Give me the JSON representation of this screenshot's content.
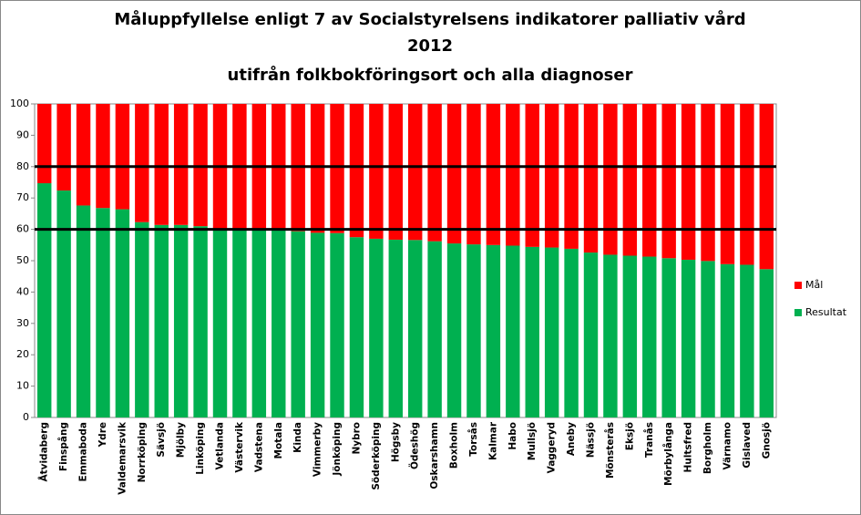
{
  "chart_data": {
    "type": "stacked_bar",
    "title": [
      "Måluppfyllelse enligt 7 av Socialstyrelsens indikatorer palliativ vård",
      "2012",
      "utifrån folkbokföringsort och alla diagnoser"
    ],
    "categories": [
      "Åtvidaberg",
      "Finspång",
      "Emmaboda",
      "Ydre",
      "Valdemarsvik",
      "Norrköping",
      "Sävsjö",
      "Mjölby",
      "Linköping",
      "Vetlanda",
      "Västervik",
      "Vadstena",
      "Motala",
      "Kinda",
      "Vimmerby",
      "Jönköping",
      "Nybro",
      "Söderköping",
      "Högsby",
      "Ödeshög",
      "Oskarshamn",
      "Boxholm",
      "Torsås",
      "Kalmar",
      "Habo",
      "Mullsjö",
      "Vaggeryd",
      "Aneby",
      "Nässjö",
      "Mönsterås",
      "Eksjö",
      "Tranås",
      "Mörbylånga",
      "Hultsfred",
      "Borgholm",
      "Värnamo",
      "Gislaved",
      "Gnosjö"
    ],
    "series": [
      {
        "name": "Resultat",
        "color": "#00b050",
        "values": [
          74.7,
          72.4,
          67.6,
          66.8,
          66.4,
          62.3,
          61.4,
          61.4,
          61.0,
          60.0,
          60.0,
          59.8,
          59.6,
          59.4,
          58.9,
          58.8,
          57.5,
          57.0,
          56.7,
          56.6,
          56.2,
          55.5,
          55.2,
          55.0,
          54.8,
          54.4,
          54.2,
          53.8,
          52.6,
          51.9,
          51.6,
          51.3,
          50.8,
          50.3,
          49.9,
          48.9,
          48.7,
          47.3
        ]
      },
      {
        "name": "Mål",
        "color": "#ff0000",
        "values": [
          25.3,
          27.6,
          32.4,
          33.2,
          33.6,
          37.7,
          38.6,
          38.6,
          39.0,
          40.0,
          40.0,
          40.2,
          40.4,
          40.6,
          41.1,
          41.2,
          42.5,
          43.0,
          43.3,
          43.4,
          43.8,
          44.5,
          44.8,
          45.0,
          45.2,
          45.6,
          45.8,
          46.2,
          47.4,
          48.1,
          48.4,
          48.7,
          49.2,
          49.7,
          50.1,
          51.1,
          51.3,
          52.7
        ]
      }
    ],
    "ylim": [
      0,
      100
    ],
    "yticks": [
      0,
      10,
      20,
      30,
      40,
      50,
      60,
      70,
      80,
      90,
      100
    ],
    "reference_lines": [
      60,
      80
    ],
    "reference_color": "#000000",
    "legend": "right"
  }
}
